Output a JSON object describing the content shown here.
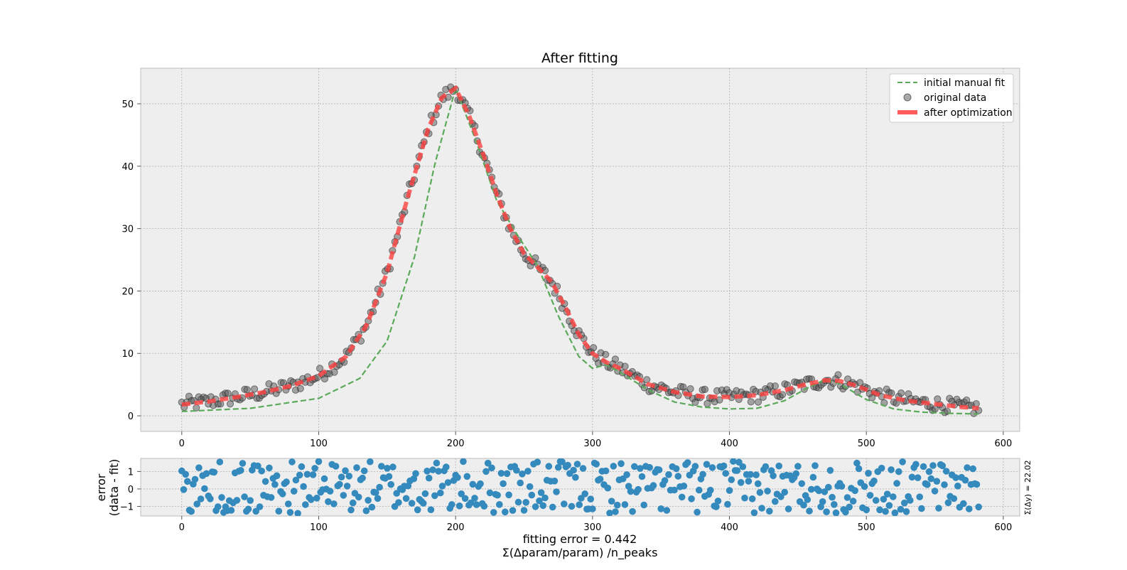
{
  "chart_data": [
    {
      "type": "scatter",
      "title": "After fitting",
      "xlabel": "",
      "ylabel": "",
      "xlim": [
        -30,
        612
      ],
      "ylim": [
        -2.5,
        55.7
      ],
      "grid": true,
      "legend_position": "top-right",
      "x_ticks": [
        0,
        100,
        200,
        300,
        400,
        500,
        600
      ],
      "y_ticks": [
        0,
        10,
        20,
        30,
        40,
        50
      ],
      "x_tick_labels": [
        "0",
        "100",
        "200",
        "300",
        "400",
        "500",
        "600"
      ],
      "y_tick_labels": [
        "0",
        "10",
        "20",
        "30",
        "40",
        "50"
      ],
      "legend": [
        "initial manual fit",
        "original data",
        "after optimization"
      ],
      "series": [
        {
          "name": "initial manual fit",
          "style": "dashed-line",
          "color": "#5aaa5a",
          "x": [
            0,
            50,
            100,
            130,
            150,
            170,
            185,
            200,
            215,
            230,
            245,
            260,
            275,
            290,
            300,
            310,
            320,
            340,
            360,
            380,
            400,
            420,
            440,
            460,
            470,
            480,
            500,
            520,
            540,
            560,
            582
          ],
          "y": [
            0.7,
            1.2,
            2.8,
            6.0,
            12.0,
            25.5,
            40.5,
            52.5,
            44.0,
            34.5,
            29.0,
            24.0,
            16.0,
            9.5,
            7.6,
            8.2,
            7.0,
            4.2,
            2.2,
            1.4,
            1.1,
            1.2,
            2.4,
            4.8,
            5.8,
            5.2,
            2.6,
            1.1,
            0.6,
            0.4,
            0.3
          ]
        },
        {
          "name": "after optimization",
          "style": "thick-line",
          "color": "#ff4040",
          "x": [
            0,
            20,
            40,
            60,
            80,
            100,
            120,
            135,
            150,
            165,
            180,
            190,
            200,
            210,
            220,
            230,
            240,
            250,
            260,
            270,
            280,
            290,
            300,
            310,
            320,
            330,
            340,
            360,
            380,
            400,
            420,
            440,
            455,
            470,
            480,
            490,
            500,
            510,
            530,
            550,
            570,
            582
          ],
          "y": [
            1.8,
            2.3,
            3.0,
            3.8,
            4.8,
            6.4,
            9.5,
            14.5,
            23.0,
            35.0,
            46.0,
            51.0,
            52.5,
            48.0,
            42.0,
            35.5,
            30.0,
            26.0,
            23.8,
            21.5,
            17.5,
            13.0,
            10.0,
            8.6,
            7.6,
            6.4,
            5.1,
            3.8,
            3.1,
            3.0,
            3.3,
            4.1,
            5.0,
            5.7,
            5.6,
            5.0,
            4.2,
            3.3,
            2.4,
            1.9,
            1.4,
            1.2
          ]
        },
        {
          "name": "original data",
          "style": "markers",
          "color": "#555555",
          "note_points": "generated around the fitted curve",
          "noise_amplitude": 1.5
        }
      ]
    },
    {
      "type": "scatter",
      "xlabel": "fitting error = 0.442\nΣ(Δparam/param) /n_peaks",
      "ylabel": "error\n(data - fit)",
      "side_label": "Σ(Δy) = 22.02",
      "xlim": [
        -30,
        612
      ],
      "ylim": [
        -1.55,
        1.75
      ],
      "x_ticks": [
        0,
        100,
        200,
        300,
        400,
        500,
        600
      ],
      "y_ticks": [
        1,
        0,
        -1
      ],
      "x_tick_labels": [
        "0",
        "100",
        "200",
        "300",
        "400",
        "500",
        "600"
      ],
      "y_tick_labels": [
        "1",
        "0",
        "−1"
      ],
      "series": [
        {
          "name": "",
          "color": "#348abd",
          "x_range": [
            0,
            582
          ],
          "n_points": 420,
          "value_range": [
            -1.4,
            1.6
          ]
        }
      ]
    }
  ],
  "labels": {
    "title": "After fitting",
    "xlabel_line1": "fitting error = 0.442",
    "xlabel_line2": "Σ(Δparam/param) /n_peaks",
    "ylabel_line1": "error",
    "ylabel_line2": "(data - fit)",
    "side_label": "Σ(Δy) = 22.02",
    "legend": [
      "initial manual fit",
      "original data",
      "after optimization"
    ]
  },
  "colors": {
    "axes_bg": "#eeeeee",
    "grid": "#b0b0b0",
    "initial_fit": "#5aaa5a",
    "data_marker": "#555555",
    "optimized": "#ff4040",
    "residual": "#348abd"
  }
}
